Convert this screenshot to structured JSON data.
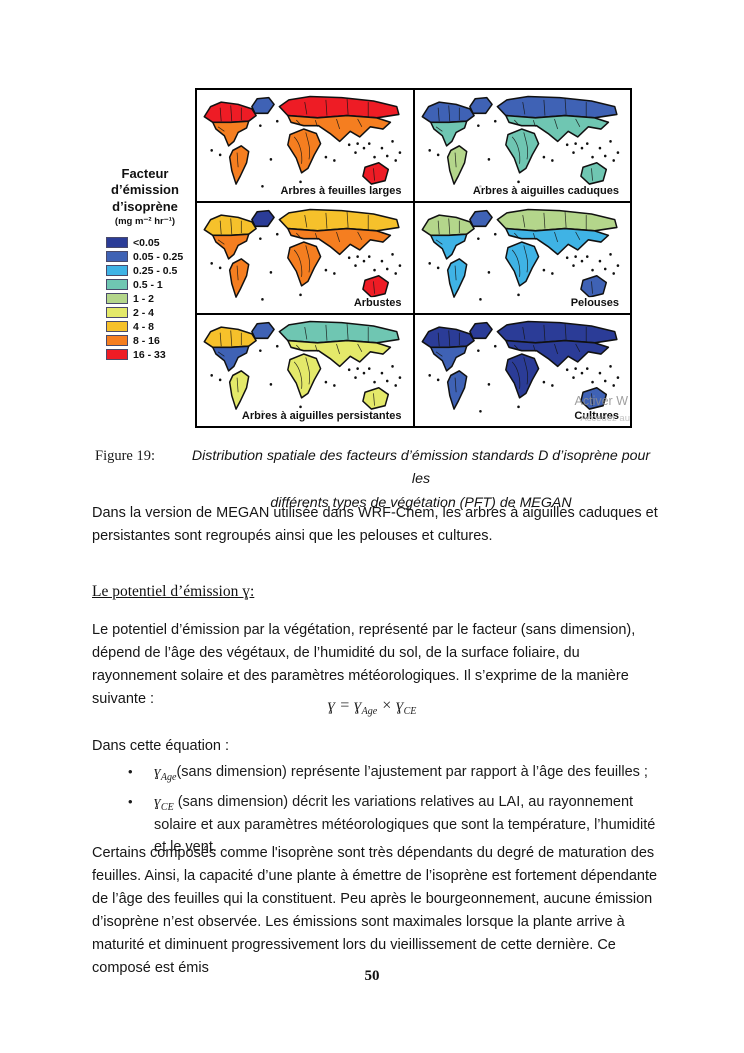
{
  "figure": {
    "legend": {
      "title_lines": [
        "Facteur",
        "d’émission",
        "d’isoprène"
      ],
      "units": "(mg m⁻² hr⁻¹)",
      "bins": [
        {
          "label": "<0.05",
          "color": "#2b3c97"
        },
        {
          "label": "0.05 - 0.25",
          "color": "#3f62b5"
        },
        {
          "label": "0.25 - 0.5",
          "color": "#3fb3e5"
        },
        {
          "label": "0.5 - 1",
          "color": "#6fc6b2"
        },
        {
          "label": "1 - 2",
          "color": "#b4d68b"
        },
        {
          "label": "2 - 4",
          "color": "#e4e96a"
        },
        {
          "label": "4 - 8",
          "color": "#f6c12b"
        },
        {
          "label": "8 - 16",
          "color": "#f57e20"
        },
        {
          "label": "16 - 33",
          "color": "#ee1c25"
        }
      ]
    },
    "panels": [
      {
        "label": "Arbres à feuilles larges",
        "regions": {
          "greenland": "#3f62b5",
          "na_north": "#ee1c25",
          "na_south": "#f57e20",
          "southamerica": "#f57e20",
          "eurasia_north": "#ee1c25",
          "eurasia_south": "#f57e20",
          "africa": "#f57e20",
          "australia": "#ee1c25"
        }
      },
      {
        "label": "Arbres à aiguilles caduques",
        "regions": {
          "greenland": "#3f62b5",
          "na_north": "#3f62b5",
          "na_south": "#6fc6b2",
          "southamerica": "#b4d68b",
          "eurasia_north": "#3f62b5",
          "eurasia_south": "#6fc6b2",
          "africa": "#6fc6b2",
          "australia": "#6fc6b2"
        }
      },
      {
        "label": "Arbustes",
        "regions": {
          "greenland": "#2b3c97",
          "na_north": "#f6c12b",
          "na_south": "#f57e20",
          "southamerica": "#f57e20",
          "eurasia_north": "#f6c12b",
          "eurasia_south": "#f57e20",
          "africa": "#f57e20",
          "australia": "#ee1c25"
        }
      },
      {
        "label": "Pelouses",
        "regions": {
          "greenland": "#3f62b5",
          "na_north": "#b4d68b",
          "na_south": "#3fb3e5",
          "southamerica": "#3fb3e5",
          "eurasia_north": "#b4d68b",
          "eurasia_south": "#3fb3e5",
          "africa": "#3fb3e5",
          "australia": "#3f62b5"
        }
      },
      {
        "label": "Arbres à aiguilles persistantes",
        "regions": {
          "greenland": "#3f62b5",
          "na_north": "#f6c12b",
          "na_south": "#3f62b5",
          "southamerica": "#e4e96a",
          "eurasia_north": "#6fc6b2",
          "eurasia_south": "#e4e96a",
          "africa": "#e4e96a",
          "australia": "#e4e96a"
        }
      },
      {
        "label": "Cultures",
        "regions": {
          "greenland": "#2b3c97",
          "na_north": "#2b3c97",
          "na_south": "#3f62b5",
          "southamerica": "#3f62b5",
          "eurasia_north": "#2b3c97",
          "eurasia_south": "#2b3c97",
          "africa": "#2b3c97",
          "australia": "#3f62b5"
        }
      }
    ],
    "watermark": {
      "line1": "Activer W",
      "line2": "Accédez au"
    }
  },
  "caption": {
    "label": "Figure 19:",
    "line1": "Distribution spatiale des facteurs d’émission standards D d’isoprène pour les",
    "line2": "différents types de végétation (PFT) de MEGAN"
  },
  "body": {
    "p1": "Dans la version de MEGAN utilisée dans WRF-Chem, les arbres à aiguilles caduques et persistantes sont regroupés ainsi que les pelouses et cultures.",
    "heading": "Le potentiel d’émission ɣ:",
    "p2": "Le potentiel d’émission par la végétation, représenté par le facteur  (sans dimension), dépend de l’âge des végétaux, de l’humidité du sol, de la surface foliaire, du rayonnement solaire et des paramètres météorologiques. Il s’exprime de la manière suivante :",
    "p3": "Dans cette équation :",
    "p4": "Certains composés comme l'isoprène sont très dépendants du degré de maturation des feuilles. Ainsi, la capacité d’une plante à émettre de l’isoprène est fortement dépendante de l’âge des feuilles qui la constituent. Peu après le bourgeonnement, aucune émission d’isoprène n’est observée. Les émissions sont maximales lorsque la plante arrive à maturité et diminuent progressivement lors du vieillissement de cette dernière. Ce composé est émis"
  },
  "equation": {
    "lhs": "ɣ",
    "rel": "=",
    "t1": "ɣ",
    "t1sub": "Age",
    "op": "×",
    "t2": "ɣ",
    "t2sub": "CE"
  },
  "bullets": [
    {
      "symbol": "ɣ",
      "sub": "Age",
      "text": "(sans dimension) représente l’ajustement par rapport à l’âge des feuilles ;"
    },
    {
      "symbol": "ɣ",
      "sub": "CE",
      "text": " (sans dimension) décrit les variations relatives au LAI, au rayonnement solaire et aux paramètres météorologiques que sont la température, l’humidité et le vent."
    }
  ],
  "page": {
    "number": "50"
  }
}
